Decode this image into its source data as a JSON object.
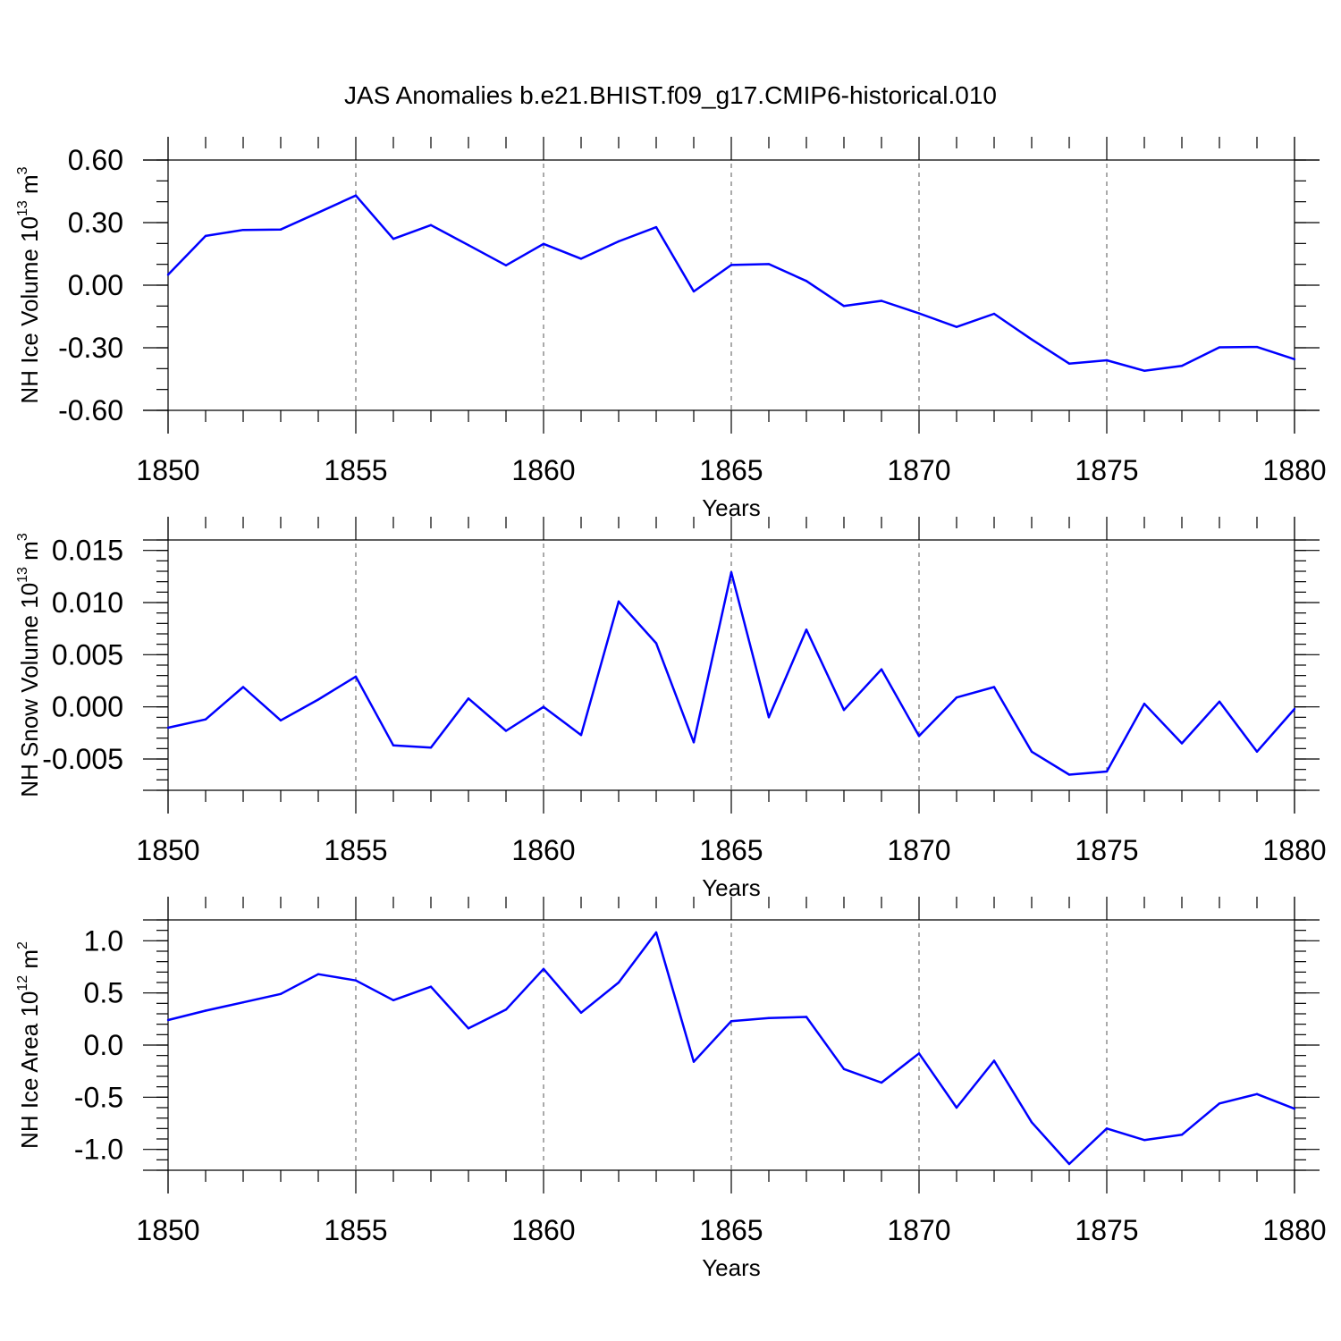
{
  "title": "JAS Anomalies b.e21.BHIST.f09_g17.CMIP6-historical.010",
  "colors": {
    "series": "#0000ff",
    "grid": "#555555"
  },
  "chart_data": [
    {
      "type": "line",
      "title": "JAS Anomalies b.e21.BHIST.f09_g17.CMIP6-historical.010",
      "xlabel": "Years",
      "ylabel_prefix": "NH Ice Volume 10",
      "ylabel_exp": "13",
      "ylabel_unit": " m",
      "ylabel_unit_exp": "3",
      "xlim": [
        1850,
        1880
      ],
      "ylim": [
        -0.6,
        0.6
      ],
      "x_ticks": [
        1850,
        1855,
        1860,
        1865,
        1870,
        1875,
        1880
      ],
      "x_tick_labels": [
        "1850",
        "1855",
        "1860",
        "1865",
        "1870",
        "1875",
        "1880"
      ],
      "y_ticks": [
        -0.6,
        -0.3,
        0.0,
        0.3,
        0.6
      ],
      "y_tick_labels": [
        "-0.60",
        "-0.30",
        "0.00",
        "0.30",
        "0.60"
      ],
      "y_minor_step": 0.1,
      "grid": "x-major dashed",
      "x": [
        1850,
        1851,
        1852,
        1853,
        1854,
        1855,
        1856,
        1857,
        1858,
        1859,
        1860,
        1861,
        1862,
        1863,
        1864,
        1865,
        1866,
        1867,
        1868,
        1869,
        1870,
        1871,
        1872,
        1873,
        1874,
        1875,
        1876,
        1877,
        1878,
        1879,
        1880
      ],
      "series": [
        {
          "values": [
            0.05,
            0.236,
            0.265,
            0.267,
            0.348,
            0.43,
            0.222,
            0.288,
            0.192,
            0.095,
            0.198,
            0.127,
            0.21,
            0.278,
            -0.03,
            0.097,
            0.101,
            0.02,
            -0.1,
            -0.075,
            -0.135,
            -0.2,
            -0.137,
            -0.26,
            -0.376,
            -0.36,
            -0.41,
            -0.387,
            -0.298,
            -0.296,
            -0.355
          ]
        }
      ]
    },
    {
      "type": "line",
      "xlabel": "Years",
      "ylabel_prefix": "NH Snow Volume 10",
      "ylabel_exp": "13",
      "ylabel_unit": " m",
      "ylabel_unit_exp": "3",
      "xlim": [
        1850,
        1880
      ],
      "ylim": [
        -0.008,
        0.016
      ],
      "x_ticks": [
        1850,
        1855,
        1860,
        1865,
        1870,
        1875,
        1880
      ],
      "x_tick_labels": [
        "1850",
        "1855",
        "1860",
        "1865",
        "1870",
        "1875",
        "1880"
      ],
      "y_ticks": [
        -0.005,
        0.0,
        0.005,
        0.01,
        0.015
      ],
      "y_tick_labels": [
        "-0.005",
        "0.000",
        "0.005",
        "0.010",
        "0.015"
      ],
      "y_minor_step": 0.001,
      "grid": "x-major dashed",
      "x": [
        1850,
        1851,
        1852,
        1853,
        1854,
        1855,
        1856,
        1857,
        1858,
        1859,
        1860,
        1861,
        1862,
        1863,
        1864,
        1865,
        1866,
        1867,
        1868,
        1869,
        1870,
        1871,
        1872,
        1873,
        1874,
        1875,
        1876,
        1877,
        1878,
        1879,
        1880
      ],
      "series": [
        {
          "values": [
            -0.002,
            -0.0012,
            0.0019,
            -0.0013,
            0.0007,
            0.0029,
            -0.0037,
            -0.0039,
            0.0008,
            -0.0023,
            0.0,
            -0.0027,
            0.0101,
            0.0061,
            -0.0034,
            0.0129,
            -0.001,
            0.0074,
            -0.0003,
            0.0036,
            -0.0028,
            0.0009,
            0.0019,
            -0.0043,
            -0.0065,
            -0.0062,
            0.0003,
            -0.0035,
            0.0005,
            -0.0043,
            -0.0002
          ]
        }
      ]
    },
    {
      "type": "line",
      "xlabel": "Years",
      "ylabel_prefix": "NH Ice Area 10",
      "ylabel_exp": "12",
      "ylabel_unit": " m",
      "ylabel_unit_exp": "2",
      "xlim": [
        1850,
        1880
      ],
      "ylim": [
        -1.2,
        1.2
      ],
      "x_ticks": [
        1850,
        1855,
        1860,
        1865,
        1870,
        1875,
        1880
      ],
      "x_tick_labels": [
        "1850",
        "1855",
        "1860",
        "1865",
        "1870",
        "1875",
        "1880"
      ],
      "y_ticks": [
        -1.0,
        -0.5,
        0.0,
        0.5,
        1.0
      ],
      "y_tick_labels": [
        "-1.0",
        "-0.5",
        "0.0",
        "0.5",
        "1.0"
      ],
      "y_minor_step": 0.1,
      "grid": "x-major dashed",
      "x": [
        1850,
        1851,
        1852,
        1853,
        1854,
        1855,
        1856,
        1857,
        1858,
        1859,
        1860,
        1861,
        1862,
        1863,
        1864,
        1865,
        1866,
        1867,
        1868,
        1869,
        1870,
        1871,
        1872,
        1873,
        1874,
        1875,
        1876,
        1877,
        1878,
        1879,
        1880
      ],
      "series": [
        {
          "values": [
            0.24,
            0.33,
            0.41,
            0.49,
            0.68,
            0.62,
            0.43,
            0.56,
            0.16,
            0.34,
            0.73,
            0.31,
            0.6,
            1.08,
            -0.16,
            0.23,
            0.26,
            0.27,
            -0.23,
            -0.36,
            -0.08,
            -0.6,
            -0.15,
            -0.74,
            -1.14,
            -0.8,
            -0.91,
            -0.86,
            -0.56,
            -0.47,
            -0.61
          ]
        }
      ]
    }
  ]
}
